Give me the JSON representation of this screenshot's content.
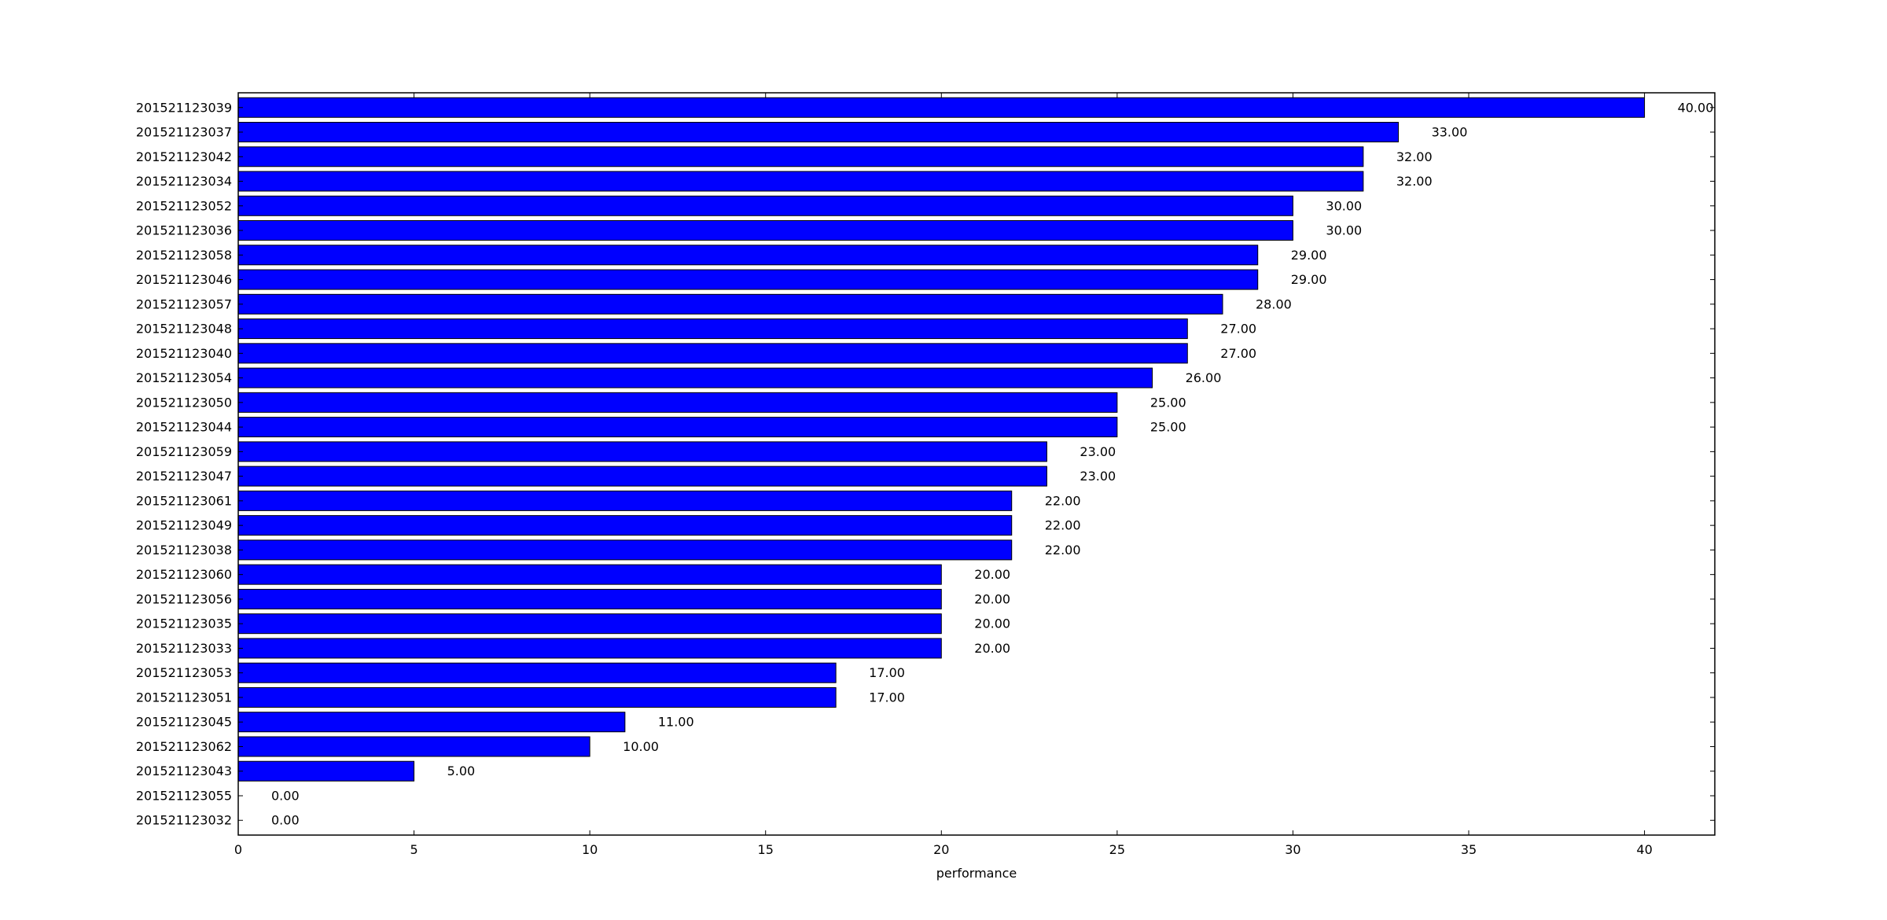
{
  "chart_data": {
    "type": "bar",
    "orientation": "horizontal",
    "title": "",
    "xlabel": "performance",
    "ylabel": "",
    "xlim": [
      0,
      42
    ],
    "xticks": [
      0,
      5,
      10,
      15,
      20,
      25,
      30,
      35,
      40
    ],
    "grid": false,
    "legend": "none",
    "bar_color": "#0000ff",
    "edge_color": "#000000",
    "categories": [
      "201521123039",
      "201521123037",
      "201521123042",
      "201521123034",
      "201521123052",
      "201521123036",
      "201521123058",
      "201521123046",
      "201521123057",
      "201521123048",
      "201521123040",
      "201521123054",
      "201521123050",
      "201521123044",
      "201521123059",
      "201521123047",
      "201521123061",
      "201521123049",
      "201521123038",
      "201521123060",
      "201521123056",
      "201521123035",
      "201521123033",
      "201521123053",
      "201521123051",
      "201521123045",
      "201521123062",
      "201521123043",
      "201521123055",
      "201521123032"
    ],
    "values": [
      40,
      33,
      32,
      32,
      30,
      30,
      29,
      29,
      28,
      27,
      27,
      26,
      25,
      25,
      23,
      23,
      22,
      22,
      22,
      20,
      20,
      20,
      20,
      17,
      17,
      11,
      10,
      5,
      0,
      0
    ],
    "value_labels": [
      "40.00",
      "33.00",
      "32.00",
      "32.00",
      "30.00",
      "30.00",
      "29.00",
      "29.00",
      "28.00",
      "27.00",
      "27.00",
      "26.00",
      "25.00",
      "25.00",
      "23.00",
      "23.00",
      "22.00",
      "22.00",
      "22.00",
      "20.00",
      "20.00",
      "20.00",
      "20.00",
      "17.00",
      "17.00",
      "11.00",
      "10.00",
      "5.00",
      "0.00",
      "0.00"
    ]
  }
}
